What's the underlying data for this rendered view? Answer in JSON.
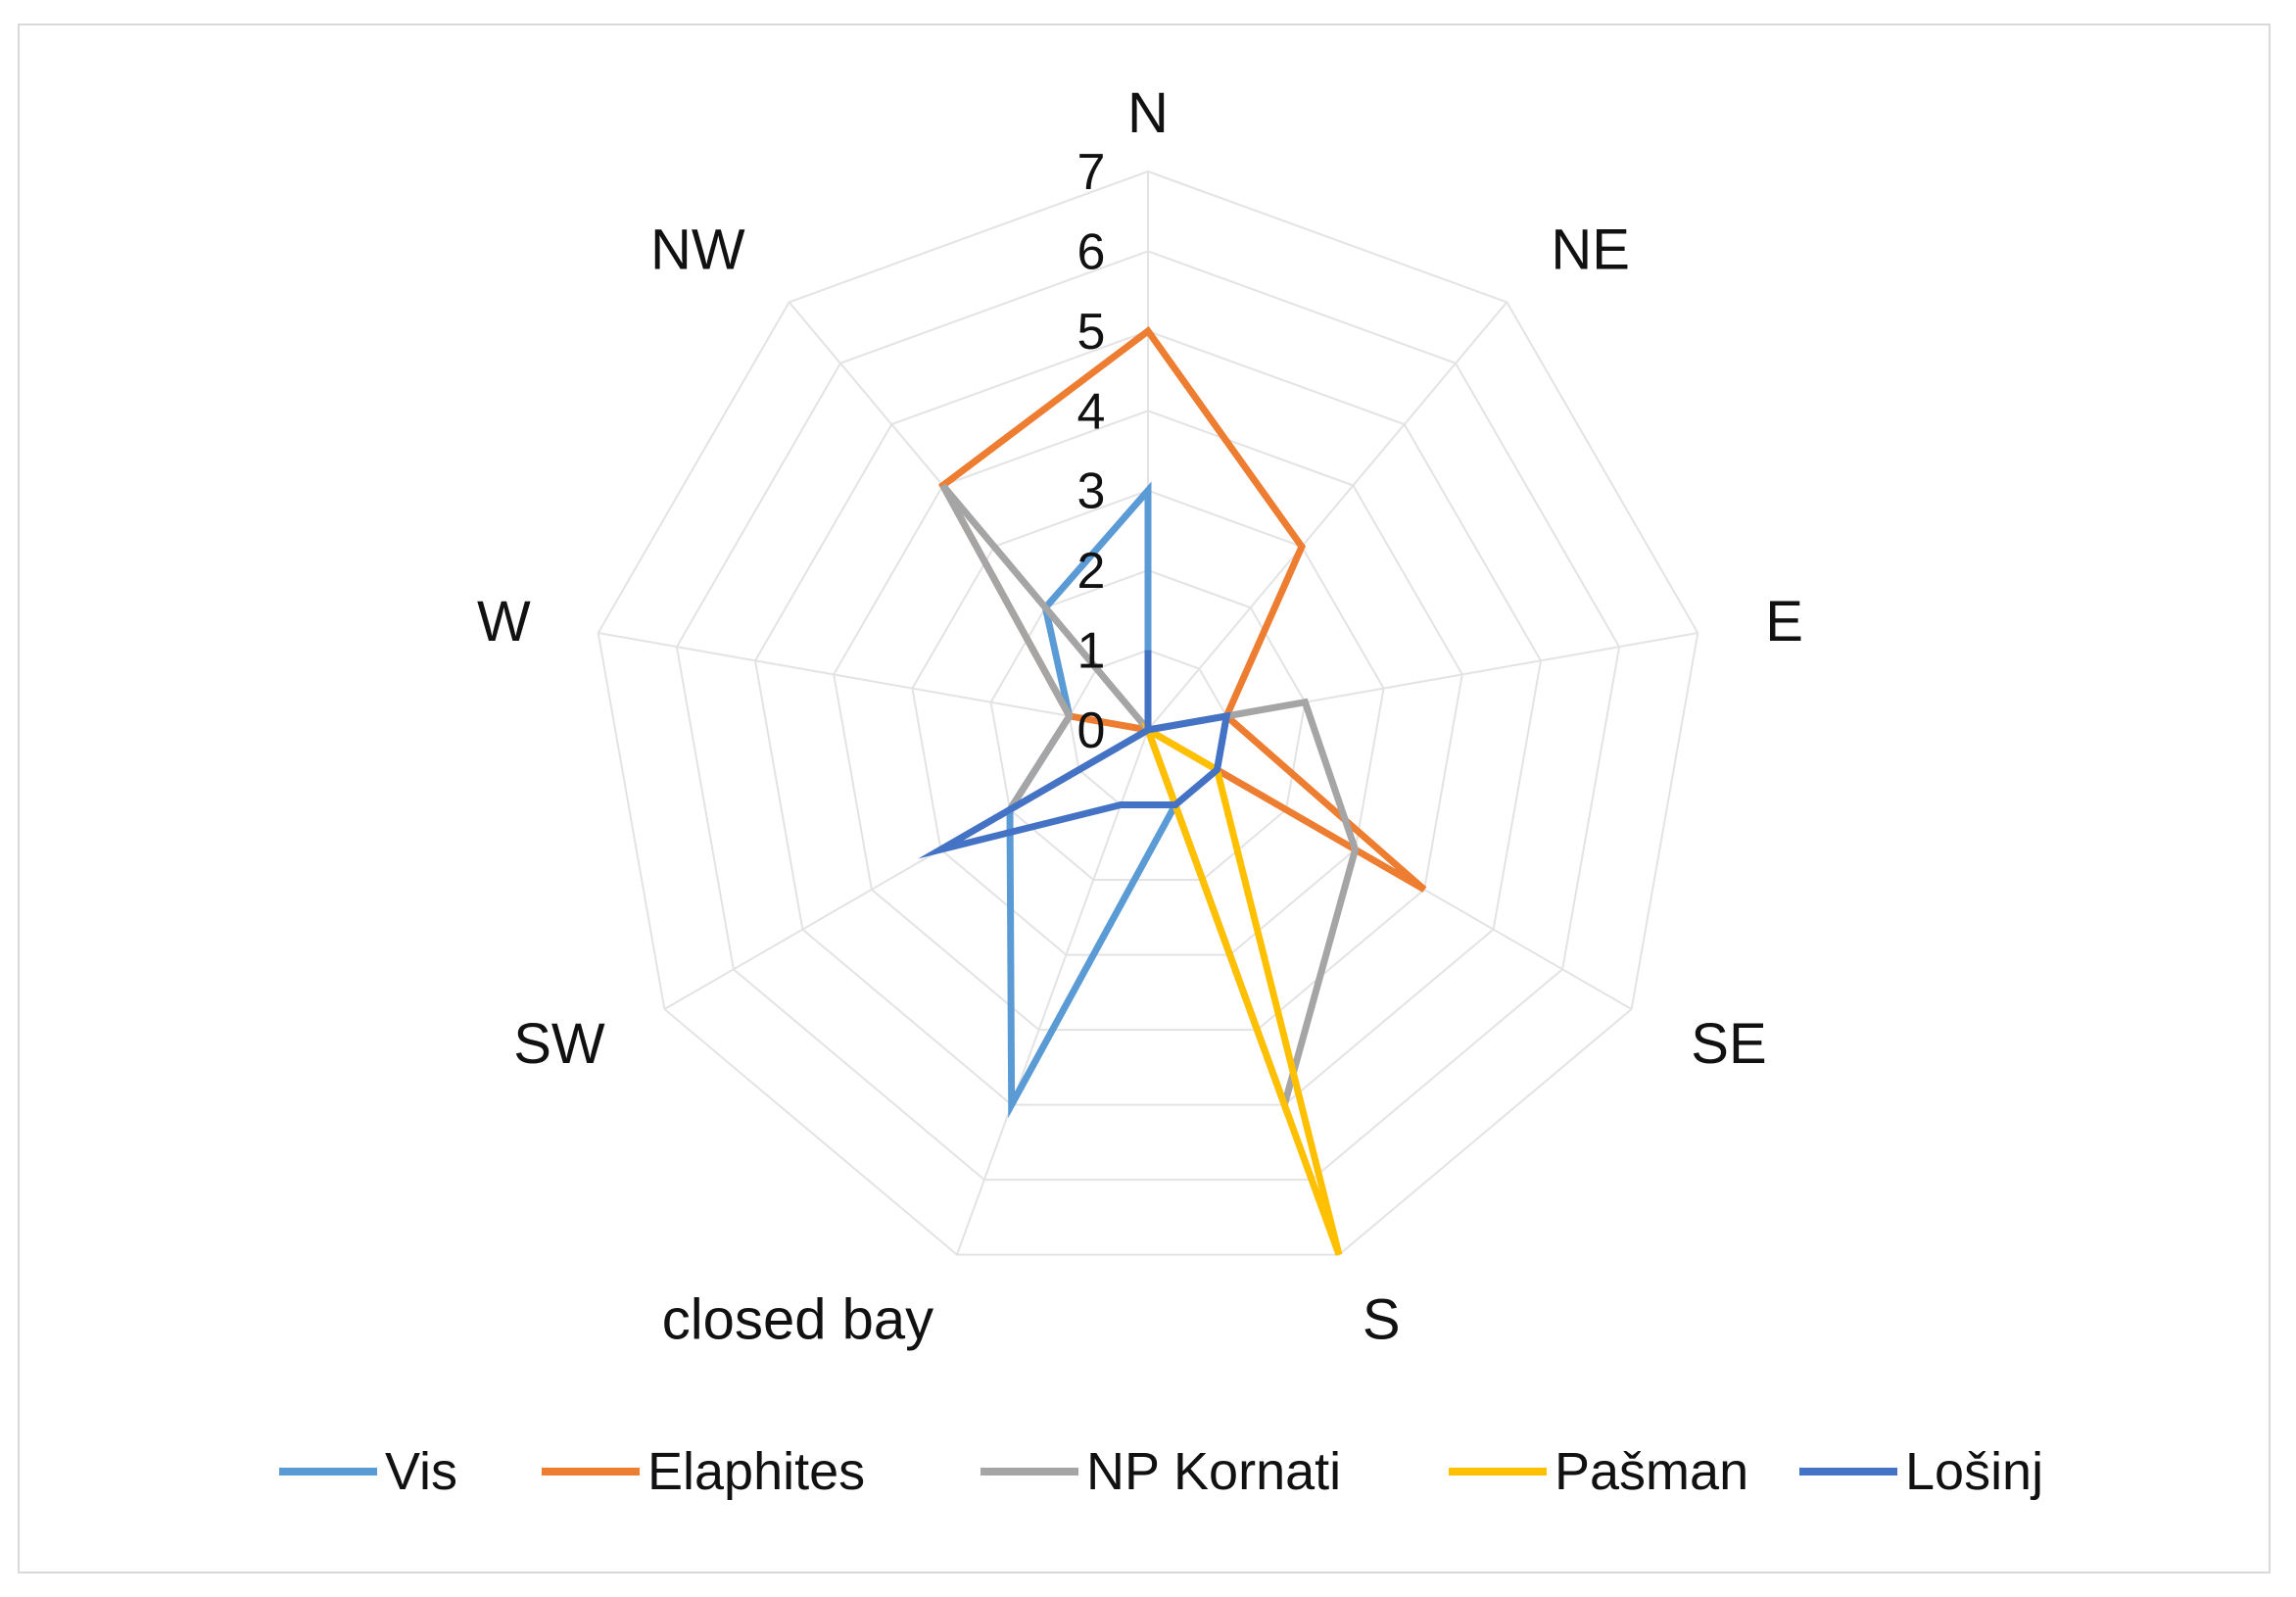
{
  "chart_data": {
    "type": "radar",
    "categories": [
      "N",
      "NE",
      "E",
      "SE",
      "S",
      "closed bay",
      "SW",
      "W",
      "NW"
    ],
    "r_ticks": [
      "0",
      "1",
      "2",
      "3",
      "4",
      "5",
      "6",
      "7"
    ],
    "r_range": [
      0,
      7
    ],
    "grid": true,
    "legend_position": "bottom",
    "series": [
      {
        "name": "Vis",
        "color": "#5b9bd5",
        "values": [
          3.0,
          0.0,
          1.0,
          1.0,
          1.0,
          5.0,
          2.0,
          1.0,
          2.0
        ]
      },
      {
        "name": "Elaphites",
        "color": "#ed7d31",
        "values": [
          5.0,
          3.0,
          1.0,
          4.0,
          0.0,
          0.0,
          0.0,
          1.0,
          4.0
        ]
      },
      {
        "name": "NP Kornati",
        "color": "#a5a5a5",
        "values": [
          0.0,
          0.0,
          2.0,
          3.0,
          5.0,
          0.0,
          2.0,
          1.0,
          4.0
        ]
      },
      {
        "name": "Pašman",
        "color": "#ffc000",
        "values": [
          0.0,
          0.0,
          0.0,
          1.0,
          7.0,
          0.0,
          0.0,
          0.0,
          0.0
        ]
      },
      {
        "name": "Lošinj",
        "color": "#4472c4",
        "values": [
          1.0,
          0.0,
          1.0,
          1.0,
          1.0,
          1.0,
          3.0,
          0.0,
          0.0
        ]
      }
    ]
  }
}
